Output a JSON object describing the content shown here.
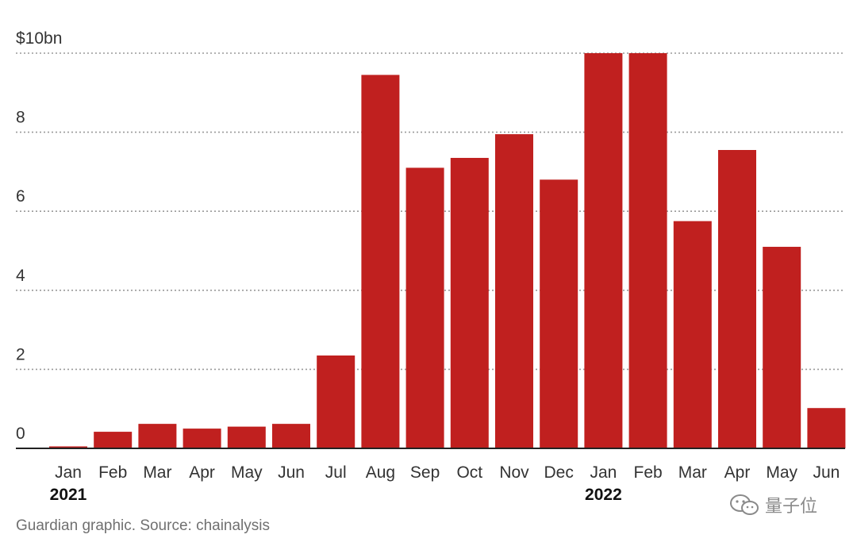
{
  "chart_data": {
    "type": "bar",
    "title": "",
    "xlabel": "",
    "ylabel": "",
    "ylim": [
      0,
      10
    ],
    "yticks": [
      {
        "value": 0,
        "label": "0"
      },
      {
        "value": 2,
        "label": "2"
      },
      {
        "value": 4,
        "label": "4"
      },
      {
        "value": 6,
        "label": "6"
      },
      {
        "value": 8,
        "label": "8"
      },
      {
        "value": 10,
        "label": "$10bn"
      }
    ],
    "grid": "horizontal dotted",
    "bar_color": "#c0201f",
    "categories": [
      "Jan",
      "Feb",
      "Mar",
      "Apr",
      "May",
      "Jun",
      "Jul",
      "Aug",
      "Sep",
      "Oct",
      "Nov",
      "Dec",
      "Jan",
      "Feb",
      "Mar",
      "Apr",
      "May",
      "Jun"
    ],
    "year_labels": [
      {
        "index": 0,
        "label": "2021"
      },
      {
        "index": 12,
        "label": "2022"
      }
    ],
    "values": [
      0.05,
      0.42,
      0.62,
      0.5,
      0.55,
      0.62,
      2.35,
      9.45,
      7.1,
      7.35,
      7.95,
      6.8,
      10.0,
      10.0,
      5.75,
      7.55,
      5.1,
      1.02
    ]
  },
  "footer": {
    "source": "Guardian graphic. Source: chainalysis"
  },
  "watermark": {
    "text": "量子位",
    "icon": "wechat-logo-icon"
  }
}
